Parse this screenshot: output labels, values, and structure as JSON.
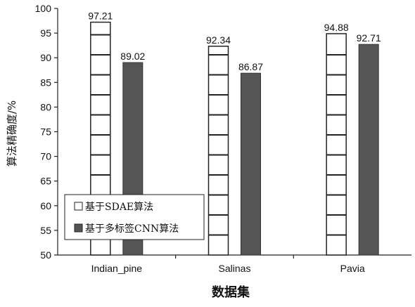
{
  "chart_data": {
    "type": "bar",
    "categories": [
      "Indian_pine",
      "Salinas",
      "Pavia"
    ],
    "series": [
      {
        "name": "基于SDAE算法",
        "values": [
          97.21,
          92.34,
          94.88
        ],
        "pattern": "white-with-horizontal-stripes",
        "color": "#ffffff"
      },
      {
        "name": "基于多标签CNN算法",
        "values": [
          89.02,
          86.87,
          92.71
        ],
        "pattern": "solid",
        "color": "#555555"
      }
    ],
    "data_labels": [
      [
        "97.21",
        "92.34",
        "94.88"
      ],
      [
        "89.02",
        "86.87",
        "92.71"
      ]
    ],
    "xlabel": "数据集",
    "ylabel": "算法精确度/%",
    "ylim": [
      50,
      100
    ],
    "yticks": [
      50,
      55,
      60,
      65,
      70,
      75,
      80,
      85,
      90,
      95,
      100
    ],
    "grid": false,
    "legend_position": "bottom-left"
  }
}
